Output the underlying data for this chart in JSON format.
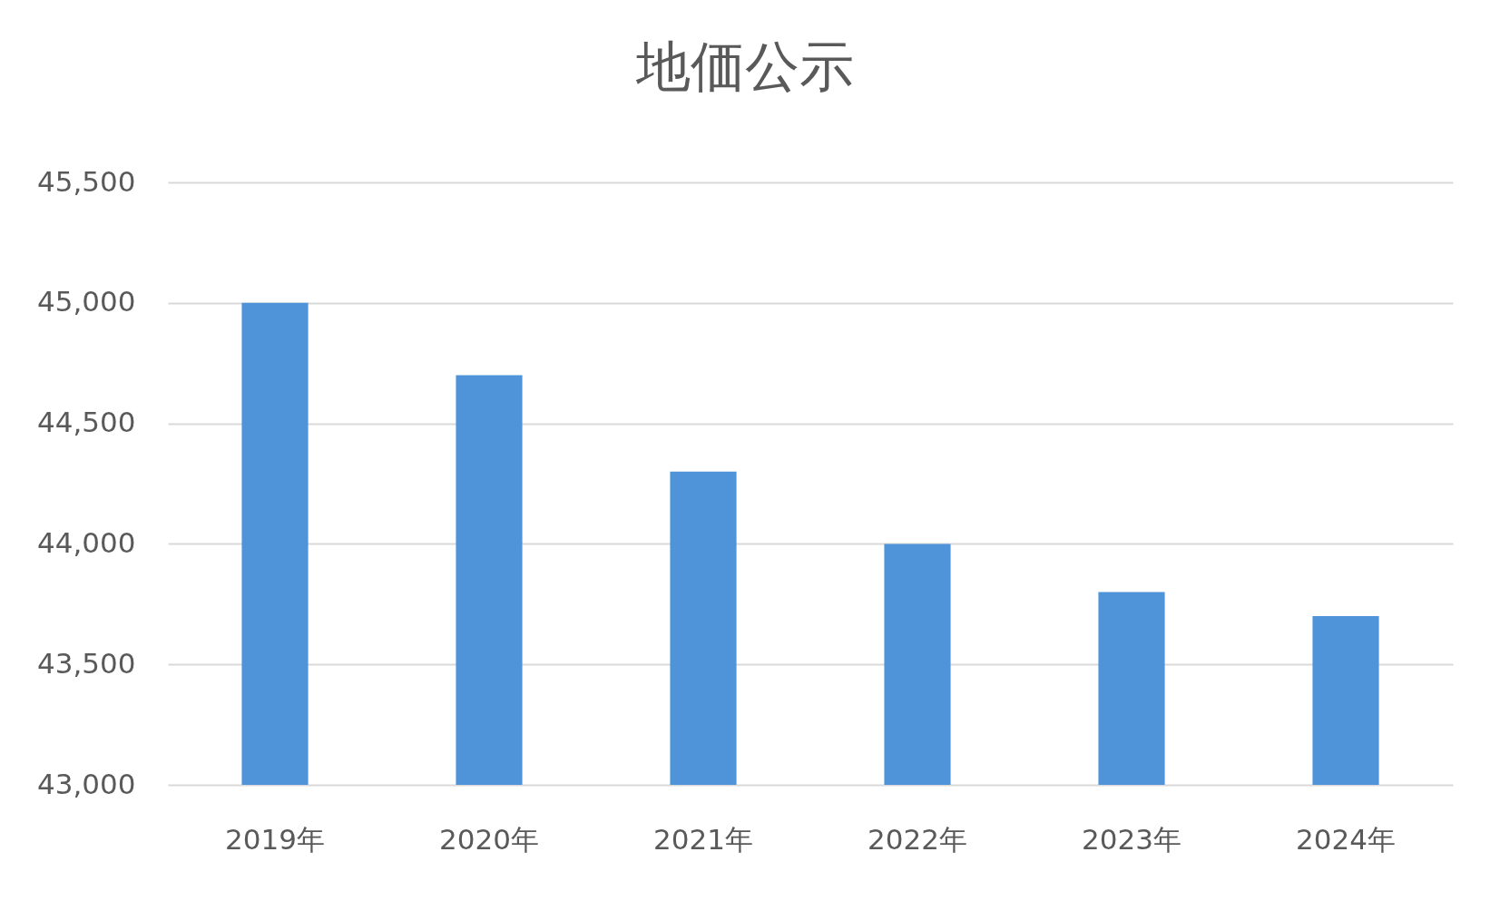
{
  "chart_data": {
    "type": "bar",
    "title": "地価公示",
    "categories": [
      "2019年",
      "2020年",
      "2021年",
      "2022年",
      "2023年",
      "2024年"
    ],
    "values": [
      45000,
      44700,
      44300,
      44000,
      43800,
      43700
    ],
    "color": "#4f94d8",
    "ylim": [
      43000,
      45500
    ],
    "yticks": [
      {
        "value": 43000,
        "label": "43,000"
      },
      {
        "value": 43500,
        "label": "43,500"
      },
      {
        "value": 44000,
        "label": "44,000"
      },
      {
        "value": 44500,
        "label": "44,500"
      },
      {
        "value": 45000,
        "label": "45,000"
      },
      {
        "value": 45500,
        "label": "45,500"
      }
    ],
    "grid": "y"
  }
}
